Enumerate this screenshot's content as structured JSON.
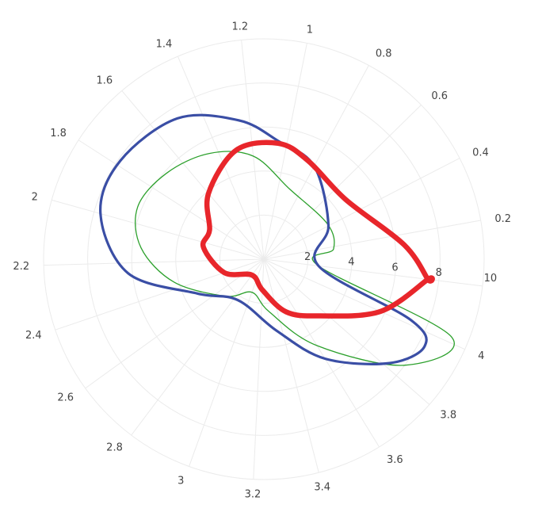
{
  "chart_data": {
    "type": "polar",
    "title": "",
    "radial_axis": {
      "range": [
        0,
        10
      ],
      "ticks": [
        2,
        4,
        6,
        8,
        10
      ],
      "tick_labels": [
        "2",
        "4",
        "6",
        "8",
        "10"
      ],
      "angle": 0
    },
    "angular_axis": {
      "period": 4.2,
      "rotation_at_zero": "right, slightly below horizontal",
      "direction": "counterclockwise",
      "ticks": [
        0.2,
        0.4,
        0.6,
        0.8,
        1,
        1.2,
        1.4,
        1.6,
        1.8,
        2,
        2.2,
        2.4,
        2.6,
        2.8,
        3,
        3.2,
        3.4,
        3.6,
        3.8,
        4
      ],
      "tick_labels": [
        "0.2",
        "0.4",
        "0.6",
        "0.8",
        "1",
        "1.2",
        "1.4",
        "1.6",
        "1.8",
        "2",
        "2.2",
        "2.4",
        "2.6",
        "2.8",
        "3",
        "3.2",
        "3.4",
        "3.6",
        "3.8",
        "4"
      ]
    },
    "grid": true,
    "legend": "none",
    "series": [
      {
        "color": "#2ca02c",
        "line_width": "thin",
        "points": [
          {
            "theta": 0.0,
            "r": 2.5
          },
          {
            "theta": 0.18,
            "r": 3.2
          },
          {
            "theta": 0.42,
            "r": 3.3
          },
          {
            "theta": 0.9,
            "r": 3.4
          },
          {
            "theta": 1.2,
            "r": 4.7
          },
          {
            "theta": 1.45,
            "r": 5.4
          },
          {
            "theta": 1.7,
            "r": 5.9
          },
          {
            "theta": 1.92,
            "r": 6.2
          },
          {
            "theta": 2.12,
            "r": 5.6
          },
          {
            "theta": 2.35,
            "r": 4.2
          },
          {
            "theta": 2.7,
            "r": 2.4
          },
          {
            "theta": 3.0,
            "r": 1.6
          },
          {
            "theta": 3.3,
            "r": 2.4
          },
          {
            "theta": 3.6,
            "r": 4.6
          },
          {
            "theta": 3.85,
            "r": 8.0
          },
          {
            "theta": 4.02,
            "r": 9.2
          }
        ]
      },
      {
        "color": "#3a4ea5",
        "line_width": "medium",
        "points": [
          {
            "theta": 0.0,
            "r": 2.5
          },
          {
            "theta": 0.4,
            "r": 3.3
          },
          {
            "theta": 0.8,
            "r": 4.8
          },
          {
            "theta": 1.05,
            "r": 5.4
          },
          {
            "theta": 1.25,
            "r": 6.4
          },
          {
            "theta": 1.5,
            "r": 7.5
          },
          {
            "theta": 1.78,
            "r": 7.9
          },
          {
            "theta": 2.0,
            "r": 7.7
          },
          {
            "theta": 2.25,
            "r": 6.2
          },
          {
            "theta": 2.5,
            "r": 3.4
          },
          {
            "theta": 2.85,
            "r": 2.2
          },
          {
            "theta": 3.35,
            "r": 3.3
          },
          {
            "theta": 3.6,
            "r": 5.3
          },
          {
            "theta": 3.82,
            "r": 7.4
          },
          {
            "theta": 3.95,
            "r": 8.3
          },
          {
            "theta": 4.02,
            "r": 7.2
          }
        ]
      },
      {
        "color": "#e8262b",
        "line_width": "thick",
        "points": [
          {
            "theta": 0.0,
            "r": 7.5
          },
          {
            "theta": 0.15,
            "r": 6.4
          },
          {
            "theta": 0.5,
            "r": 4.6
          },
          {
            "theta": 0.85,
            "r": 4.9
          },
          {
            "theta": 1.05,
            "r": 5.3
          },
          {
            "theta": 1.3,
            "r": 5.1
          },
          {
            "theta": 1.6,
            "r": 3.9
          },
          {
            "theta": 1.85,
            "r": 2.8
          },
          {
            "theta": 2.05,
            "r": 2.8
          },
          {
            "theta": 2.4,
            "r": 1.9
          },
          {
            "theta": 2.8,
            "r": 0.9
          },
          {
            "theta": 3.2,
            "r": 1.4
          },
          {
            "theta": 3.5,
            "r": 2.6
          },
          {
            "theta": 3.75,
            "r": 3.6
          },
          {
            "theta": 4.0,
            "r": 5.8
          },
          {
            "theta": 4.2,
            "r": 7.5
          }
        ]
      }
    ]
  }
}
